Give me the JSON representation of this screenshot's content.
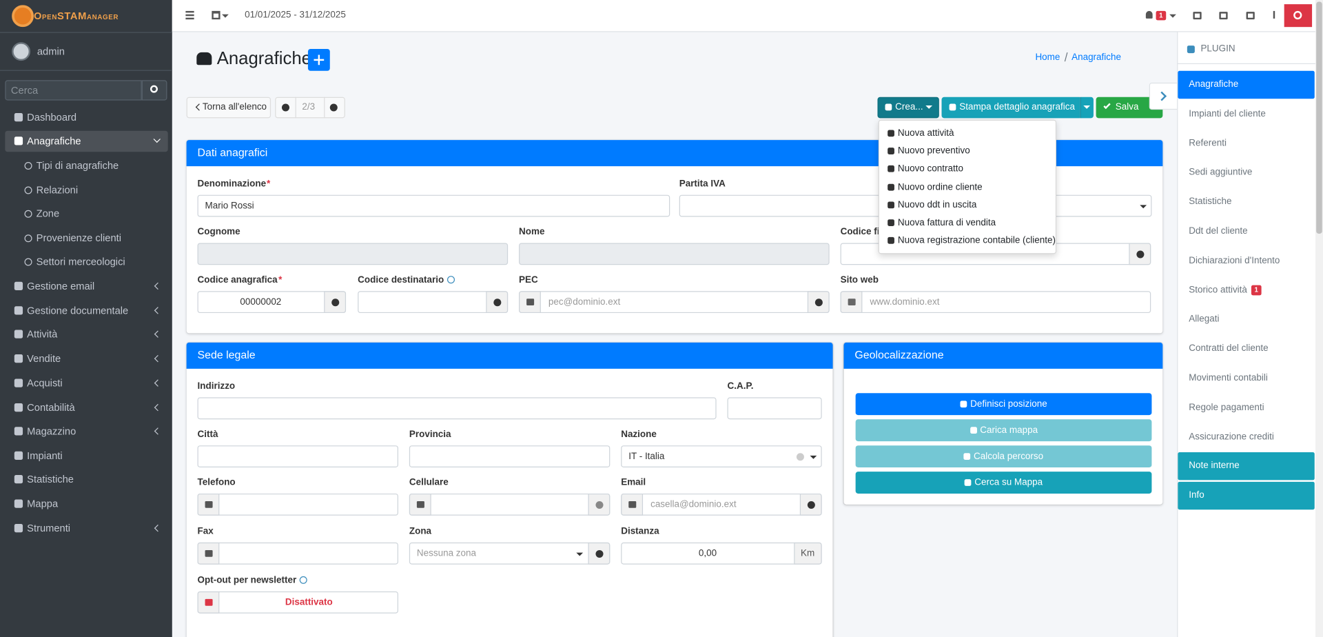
{
  "header": {
    "logo": "OpenSTAManager",
    "date_range": "01/01/2025 - 31/12/2025",
    "notifications": "1"
  },
  "sidebar": {
    "user": "admin",
    "search_placeholder": "Cerca",
    "menu": [
      "Dashboard",
      "Anagrafiche",
      "Gestione email",
      "Gestione documentale",
      "Attività",
      "Vendite",
      "Acquisti",
      "Contabilità",
      "Magazzino",
      "Impianti",
      "Statistiche",
      "Mappa",
      "Strumenti"
    ],
    "submenu": [
      "Tipi di anagrafiche",
      "Relazioni",
      "Zone",
      "Provenienze clienti",
      "Settori merceologici"
    ]
  },
  "page": {
    "title": "Anagrafiche",
    "breadcrumb": [
      "Home",
      "Anagrafiche"
    ]
  },
  "toolbar": {
    "back": "Torna all'elenco",
    "pager": "2/3",
    "create": "Crea...",
    "print": "Stampa dettaglio anagrafica",
    "save": "Salva"
  },
  "create_menu": [
    "Nuova attività",
    "Nuovo preventivo",
    "Nuovo contratto",
    "Nuovo ordine cliente",
    "Nuovo ddt in uscita",
    "Nuova fattura di vendita",
    "Nuova registrazione contabile (cliente)"
  ],
  "dati_anagrafici": {
    "title": "Dati anagrafici",
    "fields": [
      {
        "label": "Denominazione",
        "mark": "*",
        "value": "Mario Rossi"
      },
      {
        "label": "Partita IVA"
      },
      {
        "label": "Cognome",
        "disabled": true
      },
      {
        "label": "Nome",
        "disabled": true
      },
      {
        "label": "Codice fiscale"
      },
      {
        "label": "Codice anagrafica",
        "mark": "*",
        "value": "00000002"
      },
      {
        "label": "Codice destinatario"
      },
      {
        "label": "PEC",
        "placeholder": "pec@dominio.ext"
      },
      {
        "label": "Sito web",
        "placeholder": "www.dominio.ext"
      }
    ]
  },
  "sede_legale": {
    "title": "Sede legale",
    "fields": [
      {
        "label": "Indirizzo"
      },
      {
        "label": "C.A.P."
      },
      {
        "label": "Città"
      },
      {
        "label": "Provincia"
      },
      {
        "label": "Nazione",
        "value": "IT - Italia"
      },
      {
        "label": "Telefono"
      },
      {
        "label": "Cellulare"
      },
      {
        "label": "Email",
        "placeholder": "casella@dominio.ext"
      },
      {
        "label": "Fax"
      },
      {
        "label": "Zona",
        "placeholder": "Nessuna zona"
      },
      {
        "label": "Distanza",
        "value": "0,00",
        "suffix": "Km"
      },
      {
        "label": "Opt-out per newsletter",
        "value": "Disattivato"
      }
    ]
  },
  "geolocalizzazione": {
    "title": "Geolocalizzazione",
    "buttons": [
      "Definisci posizione",
      "Carica mappa",
      "Calcola percorso",
      "Cerca su Mappa"
    ]
  },
  "plugins": {
    "title": "PLUGIN",
    "items": [
      "Anagrafiche",
      "Impianti del cliente",
      "Referenti",
      "Sedi aggiuntive",
      "Statistiche",
      "Ddt del cliente",
      "Dichiarazioni d'Intento",
      "Storico attività",
      "Allegati",
      "Contratti del cliente",
      "Movimenti contabili",
      "Regole pagamenti",
      "Assicurazione crediti",
      "Note interne",
      "Info"
    ],
    "badge": "1"
  }
}
